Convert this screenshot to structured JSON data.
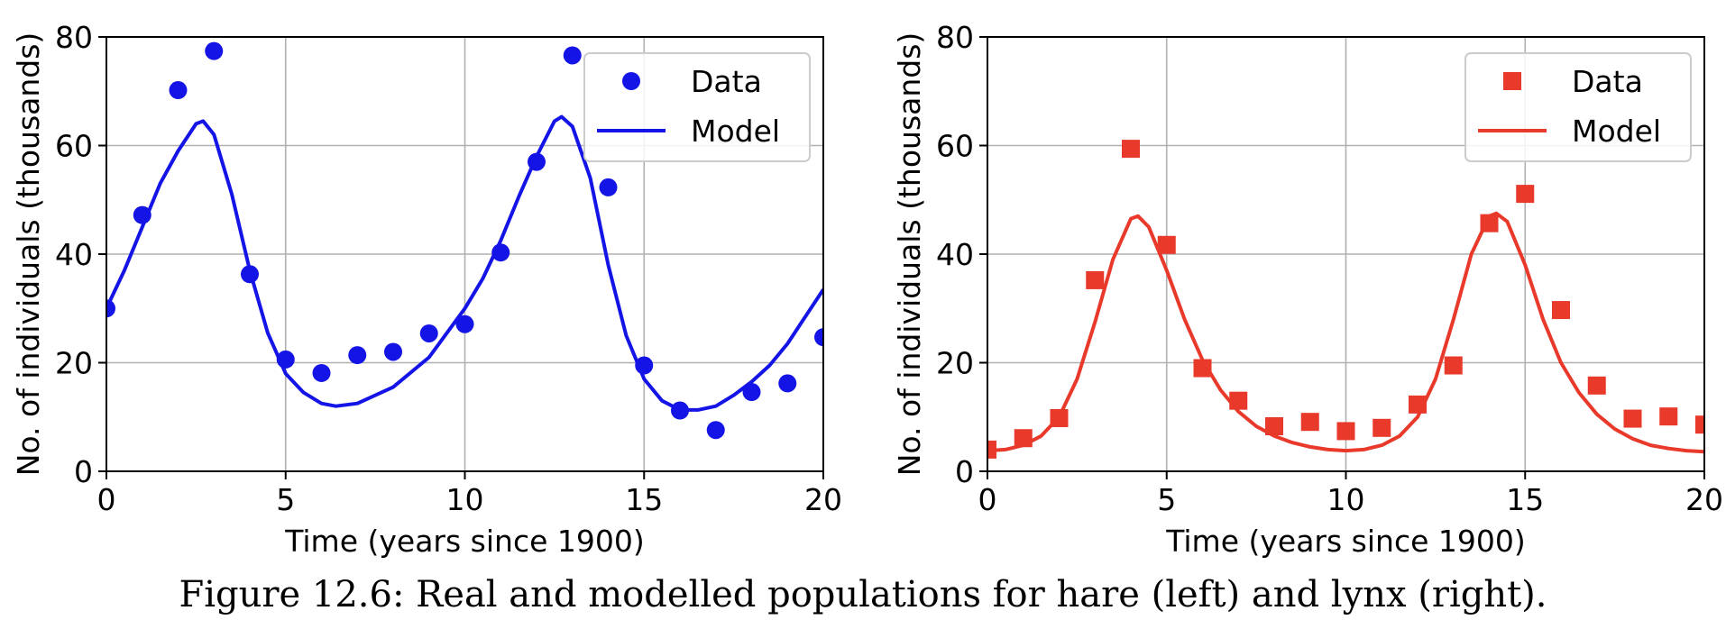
{
  "chart_data": [
    {
      "type": "line",
      "panel": "left",
      "title": "",
      "xlabel": "Time (years since 1900)",
      "ylabel": "No. of individuals (thousands)",
      "xlim": [
        0,
        20
      ],
      "ylim": [
        0,
        80
      ],
      "xticks": [
        0,
        5,
        10,
        15,
        20
      ],
      "yticks": [
        0,
        20,
        40,
        60,
        80
      ],
      "grid": true,
      "legend_position": "top-right",
      "series": [
        {
          "name": "Data",
          "kind": "scatter",
          "marker": "circle",
          "color": "#1414e6",
          "x": [
            0,
            1,
            2,
            3,
            4,
            5,
            6,
            7,
            8,
            9,
            10,
            11,
            12,
            13,
            14,
            15,
            16,
            17,
            18,
            19,
            20
          ],
          "y": [
            30,
            47.2,
            70.2,
            77.4,
            36.3,
            20.6,
            18.1,
            21.4,
            22,
            25.4,
            27.1,
            40.3,
            57,
            76.6,
            52.3,
            19.5,
            11.2,
            7.6,
            14.6,
            16.2,
            24.7
          ]
        },
        {
          "name": "Model",
          "kind": "line",
          "color": "#1414e6",
          "x": [
            0,
            0.5,
            1,
            1.5,
            2,
            2.5,
            2.7,
            3,
            3.5,
            4,
            4.5,
            5,
            5.5,
            6,
            6.4,
            7,
            8,
            9,
            10,
            10.5,
            11,
            11.5,
            12,
            12.5,
            12.7,
            13,
            13.5,
            14,
            14.5,
            15,
            15.5,
            16,
            16.5,
            17,
            17.5,
            18,
            18.5,
            19,
            19.5,
            20
          ],
          "y": [
            30,
            37,
            45,
            53,
            59,
            64,
            64.5,
            62,
            51,
            37,
            25.5,
            18,
            14.5,
            12.5,
            12,
            12.5,
            15.5,
            21,
            30,
            35.5,
            42.5,
            50.5,
            58,
            64.5,
            65.3,
            63.5,
            54,
            38,
            25,
            17,
            13,
            11.3,
            11.3,
            12,
            14,
            16.5,
            19.5,
            23.5,
            28.5,
            33.5
          ]
        }
      ]
    },
    {
      "type": "line",
      "panel": "right",
      "title": "",
      "xlabel": "Time (years since 1900)",
      "ylabel": "No. of individuals (thousands)",
      "xlim": [
        0,
        20
      ],
      "ylim": [
        0,
        80
      ],
      "xticks": [
        0,
        5,
        10,
        15,
        20
      ],
      "yticks": [
        0,
        20,
        40,
        60,
        80
      ],
      "grid": true,
      "legend_position": "top-right",
      "series": [
        {
          "name": "Data",
          "kind": "scatter",
          "marker": "square",
          "color": "#e8392a",
          "x": [
            0,
            1,
            2,
            3,
            4,
            5,
            6,
            7,
            8,
            9,
            10,
            11,
            12,
            13,
            14,
            15,
            16,
            17,
            18,
            19,
            20
          ],
          "y": [
            4,
            6.1,
            9.8,
            35.2,
            59.4,
            41.7,
            19,
            13,
            8.3,
            9.1,
            7.4,
            8,
            12.3,
            19.5,
            45.7,
            51.1,
            29.7,
            15.8,
            9.7,
            10.1,
            8.6
          ]
        },
        {
          "name": "Model",
          "kind": "line",
          "color": "#e8392a",
          "x": [
            0,
            0.5,
            1,
            1.5,
            2,
            2.5,
            3,
            3.5,
            4,
            4.2,
            4.5,
            5,
            5.5,
            6,
            6.5,
            7,
            7.5,
            8,
            8.5,
            9,
            9.5,
            10,
            10.5,
            11,
            11.5,
            12,
            12.5,
            13,
            13.5,
            14,
            14.2,
            14.5,
            15,
            15.5,
            16,
            16.5,
            17,
            17.5,
            18,
            18.5,
            19,
            19.5,
            20
          ],
          "y": [
            3.8,
            4,
            4.8,
            6.5,
            10,
            17,
            27.5,
            39,
            46.5,
            47,
            45,
            37,
            28,
            20.5,
            15,
            11,
            8.3,
            6.5,
            5.3,
            4.5,
            4,
            3.8,
            4,
            4.8,
            6.5,
            10,
            17,
            28,
            40,
            47,
            47.5,
            46,
            38,
            28,
            20,
            14.5,
            10.5,
            7.8,
            6,
            4.8,
            4.2,
            3.8,
            3.6
          ]
        }
      ]
    }
  ],
  "legend": {
    "data_label": "Data",
    "model_label": "Model"
  },
  "caption": "Figure 12.6: Real and modelled populations for hare (left) and lynx (right)."
}
